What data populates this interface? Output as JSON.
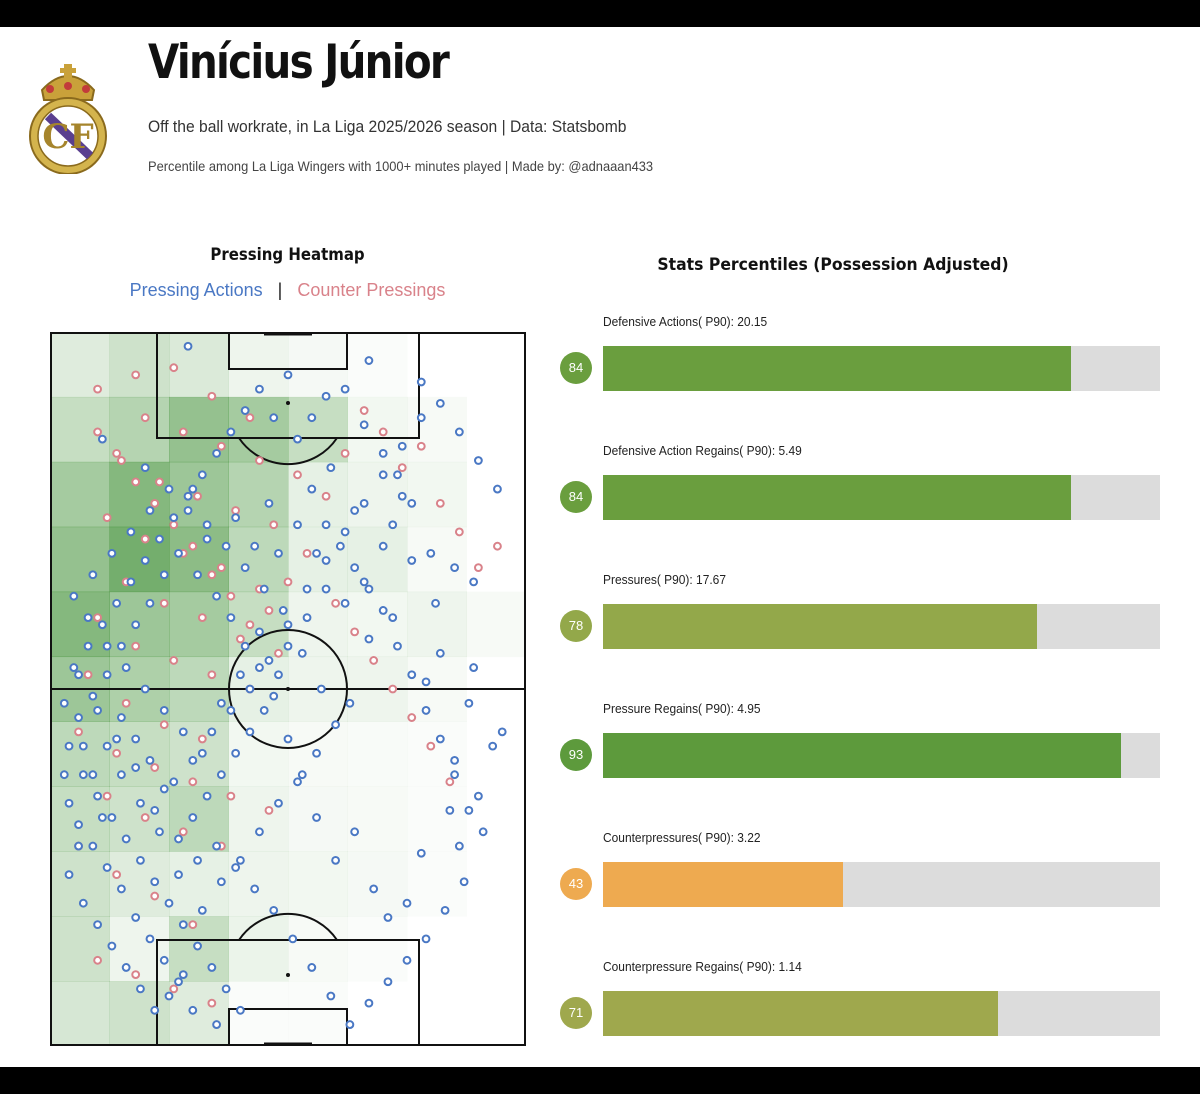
{
  "header": {
    "title": "Vinícius Júnior",
    "subtitle": "Off the ball workrate, in La Liga 2025/2026 season | Data: Statsbomb",
    "subtitle2": "Percentile among La Liga Wingers with 1000+ minutes played | Made by: @adnaaan433",
    "logo_icon": "real-madrid-crest-icon"
  },
  "colors": {
    "pressing": "#4a78c4",
    "counter": "#d9828a",
    "heat": "#3f8f34",
    "bar_high": "#6a9e3e",
    "bar_mid": "#93a84a",
    "bar_low": "#eeaa50",
    "track": "#dcdcdc"
  },
  "chart_data": [
    {
      "type": "heatmap",
      "title": "Pressing Heatmap",
      "legend": [
        "Pressing Actions",
        "Counter Pressings"
      ],
      "legend_separator": "|",
      "grid_rows": 11,
      "grid_cols": 8,
      "cells": [
        [
          0.2,
          0.3,
          0.22,
          0.1,
          0.06,
          0.03,
          0.0,
          0.0
        ],
        [
          0.35,
          0.45,
          0.65,
          0.55,
          0.35,
          0.08,
          0.05,
          0.0
        ],
        [
          0.55,
          0.75,
          0.6,
          0.45,
          0.15,
          0.1,
          0.08,
          0.0
        ],
        [
          0.65,
          0.85,
          0.7,
          0.4,
          0.15,
          0.15,
          0.05,
          0.0
        ],
        [
          0.75,
          0.6,
          0.55,
          0.35,
          0.1,
          0.08,
          0.1,
          0.05
        ],
        [
          0.6,
          0.5,
          0.4,
          0.15,
          0.1,
          0.1,
          0.05,
          0.0
        ],
        [
          0.4,
          0.35,
          0.3,
          0.08,
          0.05,
          0.04,
          0.03,
          0.0
        ],
        [
          0.35,
          0.3,
          0.4,
          0.1,
          0.06,
          0.05,
          0.03,
          0.0
        ],
        [
          0.3,
          0.2,
          0.15,
          0.1,
          0.08,
          0.06,
          0.03,
          0.0
        ],
        [
          0.3,
          0.1,
          0.35,
          0.12,
          0.05,
          0.03,
          0.0,
          0.0
        ],
        [
          0.25,
          0.3,
          0.2,
          0.03,
          0.03,
          0.0,
          0.0,
          0.0
        ]
      ],
      "pressing_actions": [
        [
          29,
          2
        ],
        [
          50,
          6
        ],
        [
          67,
          4
        ],
        [
          78,
          7
        ],
        [
          58,
          9
        ],
        [
          11,
          15
        ],
        [
          20,
          19
        ],
        [
          30,
          22
        ],
        [
          59,
          19
        ],
        [
          46,
          24
        ],
        [
          64,
          25
        ],
        [
          74,
          23
        ],
        [
          72,
          27
        ],
        [
          39,
          26
        ],
        [
          33,
          29
        ],
        [
          43,
          30
        ],
        [
          56,
          31
        ],
        [
          76,
          32
        ],
        [
          80,
          31
        ],
        [
          85,
          33
        ],
        [
          89,
          35
        ],
        [
          81,
          38
        ],
        [
          72,
          40
        ],
        [
          67,
          43
        ],
        [
          82,
          45
        ],
        [
          89,
          47
        ],
        [
          79,
          49
        ],
        [
          88,
          52
        ],
        [
          93,
          58
        ],
        [
          85,
          60
        ],
        [
          95,
          56
        ],
        [
          90,
          65
        ],
        [
          84,
          67
        ],
        [
          86,
          72
        ],
        [
          78,
          73
        ],
        [
          75,
          80
        ],
        [
          71,
          82
        ],
        [
          68,
          78
        ],
        [
          64,
          70
        ],
        [
          60,
          74
        ],
        [
          56,
          68
        ],
        [
          53,
          62
        ],
        [
          50,
          57
        ],
        [
          47,
          51
        ],
        [
          44,
          47
        ],
        [
          41,
          44
        ],
        [
          38,
          40
        ],
        [
          35,
          37
        ],
        [
          31,
          34
        ],
        [
          27,
          31
        ],
        [
          24,
          34
        ],
        [
          21,
          38
        ],
        [
          18,
          41
        ],
        [
          15,
          44
        ],
        [
          12,
          48
        ],
        [
          9,
          51
        ],
        [
          6,
          54
        ],
        [
          4,
          58
        ],
        [
          7,
          62
        ],
        [
          10,
          65
        ],
        [
          13,
          68
        ],
        [
          16,
          71
        ],
        [
          19,
          74
        ],
        [
          22,
          77
        ],
        [
          25,
          80
        ],
        [
          28,
          83
        ],
        [
          31,
          86
        ],
        [
          34,
          89
        ],
        [
          37,
          92
        ],
        [
          40,
          95
        ],
        [
          35,
          97
        ],
        [
          30,
          95
        ],
        [
          27,
          91
        ],
        [
          24,
          88
        ],
        [
          21,
          85
        ],
        [
          18,
          82
        ],
        [
          15,
          78
        ],
        [
          12,
          75
        ],
        [
          9,
          72
        ],
        [
          6,
          69
        ],
        [
          4,
          66
        ],
        [
          3,
          62
        ],
        [
          5,
          47
        ],
        [
          8,
          44
        ],
        [
          11,
          41
        ],
        [
          14,
          38
        ],
        [
          17,
          35
        ],
        [
          20,
          32
        ],
        [
          23,
          29
        ],
        [
          26,
          26
        ],
        [
          29,
          23
        ],
        [
          32,
          20
        ],
        [
          35,
          17
        ],
        [
          38,
          14
        ],
        [
          41,
          11
        ],
        [
          44,
          8
        ],
        [
          47,
          12
        ],
        [
          52,
          15
        ],
        [
          55,
          12
        ],
        [
          62,
          8
        ],
        [
          66,
          13
        ],
        [
          70,
          17
        ],
        [
          73,
          20
        ],
        [
          76,
          24
        ],
        [
          70,
          30
        ],
        [
          66,
          35
        ],
        [
          62,
          38
        ],
        [
          58,
          36
        ],
        [
          54,
          40
        ],
        [
          50,
          44
        ],
        [
          48,
          48
        ],
        [
          45,
          53
        ],
        [
          42,
          56
        ],
        [
          39,
          59
        ],
        [
          36,
          62
        ],
        [
          33,
          65
        ],
        [
          30,
          68
        ],
        [
          27,
          71
        ],
        [
          24,
          64
        ],
        [
          21,
          60
        ],
        [
          18,
          57
        ],
        [
          15,
          54
        ],
        [
          12,
          58
        ],
        [
          9,
          62
        ],
        [
          6,
          72
        ],
        [
          4,
          76
        ],
        [
          7,
          80
        ],
        [
          10,
          83
        ],
        [
          13,
          86
        ],
        [
          16,
          89
        ],
        [
          19,
          92
        ],
        [
          22,
          95
        ],
        [
          25,
          93
        ],
        [
          28,
          90
        ],
        [
          32,
          81
        ],
        [
          36,
          77
        ],
        [
          40,
          74
        ],
        [
          44,
          70
        ],
        [
          48,
          66
        ],
        [
          52,
          63
        ],
        [
          56,
          59
        ],
        [
          60,
          55
        ],
        [
          63,
          52
        ],
        [
          57,
          50
        ],
        [
          53,
          45
        ],
        [
          49,
          39
        ],
        [
          45,
          36
        ],
        [
          41,
          33
        ],
        [
          37,
          30
        ],
        [
          33,
          27
        ],
        [
          29,
          25
        ],
        [
          25,
          22
        ],
        [
          21,
          25
        ],
        [
          17,
          28
        ],
        [
          13,
          31
        ],
        [
          9,
          34
        ],
        [
          5,
          37
        ],
        [
          8,
          40
        ],
        [
          12,
          44
        ],
        [
          16,
          47
        ],
        [
          20,
          50
        ],
        [
          24,
          53
        ],
        [
          28,
          56
        ],
        [
          32,
          59
        ],
        [
          36,
          52
        ],
        [
          40,
          48
        ],
        [
          44,
          42
        ],
        [
          48,
          31
        ],
        [
          52,
          27
        ],
        [
          55,
          22
        ],
        [
          58,
          27
        ],
        [
          61,
          30
        ],
        [
          64,
          33
        ],
        [
          67,
          36
        ],
        [
          70,
          39
        ],
        [
          73,
          44
        ],
        [
          76,
          48
        ],
        [
          79,
          53
        ],
        [
          82,
          57
        ],
        [
          85,
          62
        ],
        [
          88,
          67
        ],
        [
          91,
          70
        ],
        [
          87,
          77
        ],
        [
          83,
          81
        ],
        [
          79,
          85
        ],
        [
          75,
          88
        ],
        [
          71,
          91
        ],
        [
          67,
          94
        ],
        [
          63,
          97
        ],
        [
          59,
          93
        ],
        [
          55,
          89
        ],
        [
          51,
          85
        ],
        [
          47,
          81
        ],
        [
          43,
          78
        ],
        [
          39,
          75
        ],
        [
          35,
          72
        ],
        [
          31,
          74
        ],
        [
          27,
          76
        ],
        [
          23,
          70
        ],
        [
          19,
          66
        ],
        [
          15,
          62
        ],
        [
          11,
          68
        ],
        [
          7,
          58
        ],
        [
          3,
          52
        ],
        [
          6,
          48
        ],
        [
          10,
          53
        ],
        [
          14,
          57
        ],
        [
          18,
          61
        ],
        [
          22,
          67
        ],
        [
          26,
          63
        ],
        [
          30,
          60
        ],
        [
          34,
          56
        ],
        [
          38,
          53
        ],
        [
          42,
          50
        ],
        [
          46,
          46
        ],
        [
          50,
          41
        ],
        [
          54,
          36
        ],
        [
          58,
          32
        ],
        [
          62,
          28
        ],
        [
          66,
          24
        ],
        [
          70,
          20
        ],
        [
          74,
          16
        ],
        [
          78,
          12
        ],
        [
          82,
          10
        ],
        [
          86,
          14
        ],
        [
          90,
          18
        ],
        [
          94,
          22
        ]
      ],
      "counter_pressings": [
        [
          10,
          8
        ],
        [
          18,
          6
        ],
        [
          26,
          5
        ],
        [
          34,
          9
        ],
        [
          42,
          12
        ],
        [
          20,
          12
        ],
        [
          28,
          14
        ],
        [
          36,
          16
        ],
        [
          44,
          18
        ],
        [
          52,
          20
        ],
        [
          15,
          18
        ],
        [
          23,
          21
        ],
        [
          31,
          23
        ],
        [
          39,
          25
        ],
        [
          47,
          27
        ],
        [
          12,
          26
        ],
        [
          20,
          29
        ],
        [
          28,
          31
        ],
        [
          36,
          33
        ],
        [
          44,
          36
        ],
        [
          16,
          35
        ],
        [
          24,
          38
        ],
        [
          32,
          40
        ],
        [
          40,
          43
        ],
        [
          48,
          45
        ],
        [
          10,
          40
        ],
        [
          18,
          44
        ],
        [
          26,
          46
        ],
        [
          34,
          48
        ],
        [
          42,
          50
        ],
        [
          8,
          48
        ],
        [
          16,
          52
        ],
        [
          24,
          55
        ],
        [
          32,
          57
        ],
        [
          6,
          56
        ],
        [
          14,
          59
        ],
        [
          22,
          61
        ],
        [
          30,
          63
        ],
        [
          38,
          65
        ],
        [
          46,
          67
        ],
        [
          12,
          65
        ],
        [
          20,
          68
        ],
        [
          28,
          70
        ],
        [
          36,
          72
        ],
        [
          6,
          72
        ],
        [
          14,
          76
        ],
        [
          22,
          79
        ],
        [
          30,
          83
        ],
        [
          10,
          88
        ],
        [
          18,
          90
        ],
        [
          26,
          92
        ],
        [
          34,
          94
        ],
        [
          58,
          23
        ],
        [
          62,
          17
        ],
        [
          66,
          11
        ],
        [
          70,
          14
        ],
        [
          74,
          19
        ],
        [
          78,
          16
        ],
        [
          82,
          24
        ],
        [
          86,
          28
        ],
        [
          90,
          33
        ],
        [
          94,
          30
        ],
        [
          60,
          38
        ],
        [
          64,
          42
        ],
        [
          68,
          46
        ],
        [
          72,
          50
        ],
        [
          76,
          54
        ],
        [
          80,
          58
        ],
        [
          84,
          63
        ],
        [
          54,
          31
        ],
        [
          50,
          35
        ],
        [
          46,
          39
        ],
        [
          42,
          41
        ],
        [
          38,
          37
        ],
        [
          34,
          34
        ],
        [
          30,
          30
        ],
        [
          26,
          27
        ],
        [
          22,
          24
        ],
        [
          18,
          21
        ],
        [
          14,
          17
        ],
        [
          10,
          14
        ]
      ]
    },
    {
      "type": "bar",
      "title": "Stats Percentiles (Possession Adjusted)",
      "xlim": [
        0,
        100
      ],
      "series": [
        {
          "label": "Defensive Actions( P90): 20.15",
          "percentile": 84,
          "color": "#6a9e3e"
        },
        {
          "label": "Defensive Action Regains( P90): 5.49",
          "percentile": 84,
          "color": "#6a9e3e"
        },
        {
          "label": "Pressures( P90): 17.67",
          "percentile": 78,
          "color": "#93a84a"
        },
        {
          "label": "Pressure Regains( P90): 4.95",
          "percentile": 93,
          "color": "#5d9a3c"
        },
        {
          "label": "Counterpressures( P90): 3.22",
          "percentile": 43,
          "color": "#eeaa50"
        },
        {
          "label": "Counterpressure Regains( P90): 1.14",
          "percentile": 71,
          "color": "#9fa84d"
        }
      ]
    }
  ]
}
